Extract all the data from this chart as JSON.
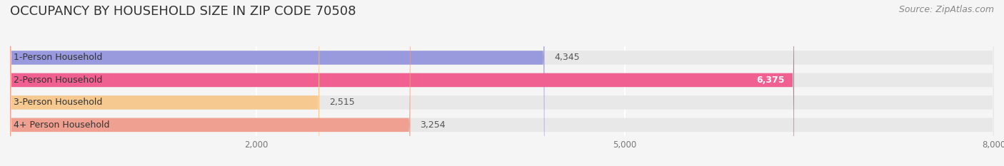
{
  "title": "OCCUPANCY BY HOUSEHOLD SIZE IN ZIP CODE 70508",
  "source": "Source: ZipAtlas.com",
  "categories": [
    "1-Person Household",
    "2-Person Household",
    "3-Person Household",
    "4+ Person Household"
  ],
  "values": [
    4345,
    6375,
    2515,
    3254
  ],
  "bar_colors": [
    "#9999dd",
    "#f06090",
    "#f5c990",
    "#f0a090"
  ],
  "label_colors": [
    "#555555",
    "#ffffff",
    "#555555",
    "#555555"
  ],
  "xlim": [
    0,
    8000
  ],
  "xticks": [
    2000,
    5000,
    8000
  ],
  "background_color": "#f5f5f5",
  "bar_background_color": "#e8e8e8",
  "title_fontsize": 13,
  "label_fontsize": 9,
  "value_fontsize": 9,
  "source_fontsize": 9
}
